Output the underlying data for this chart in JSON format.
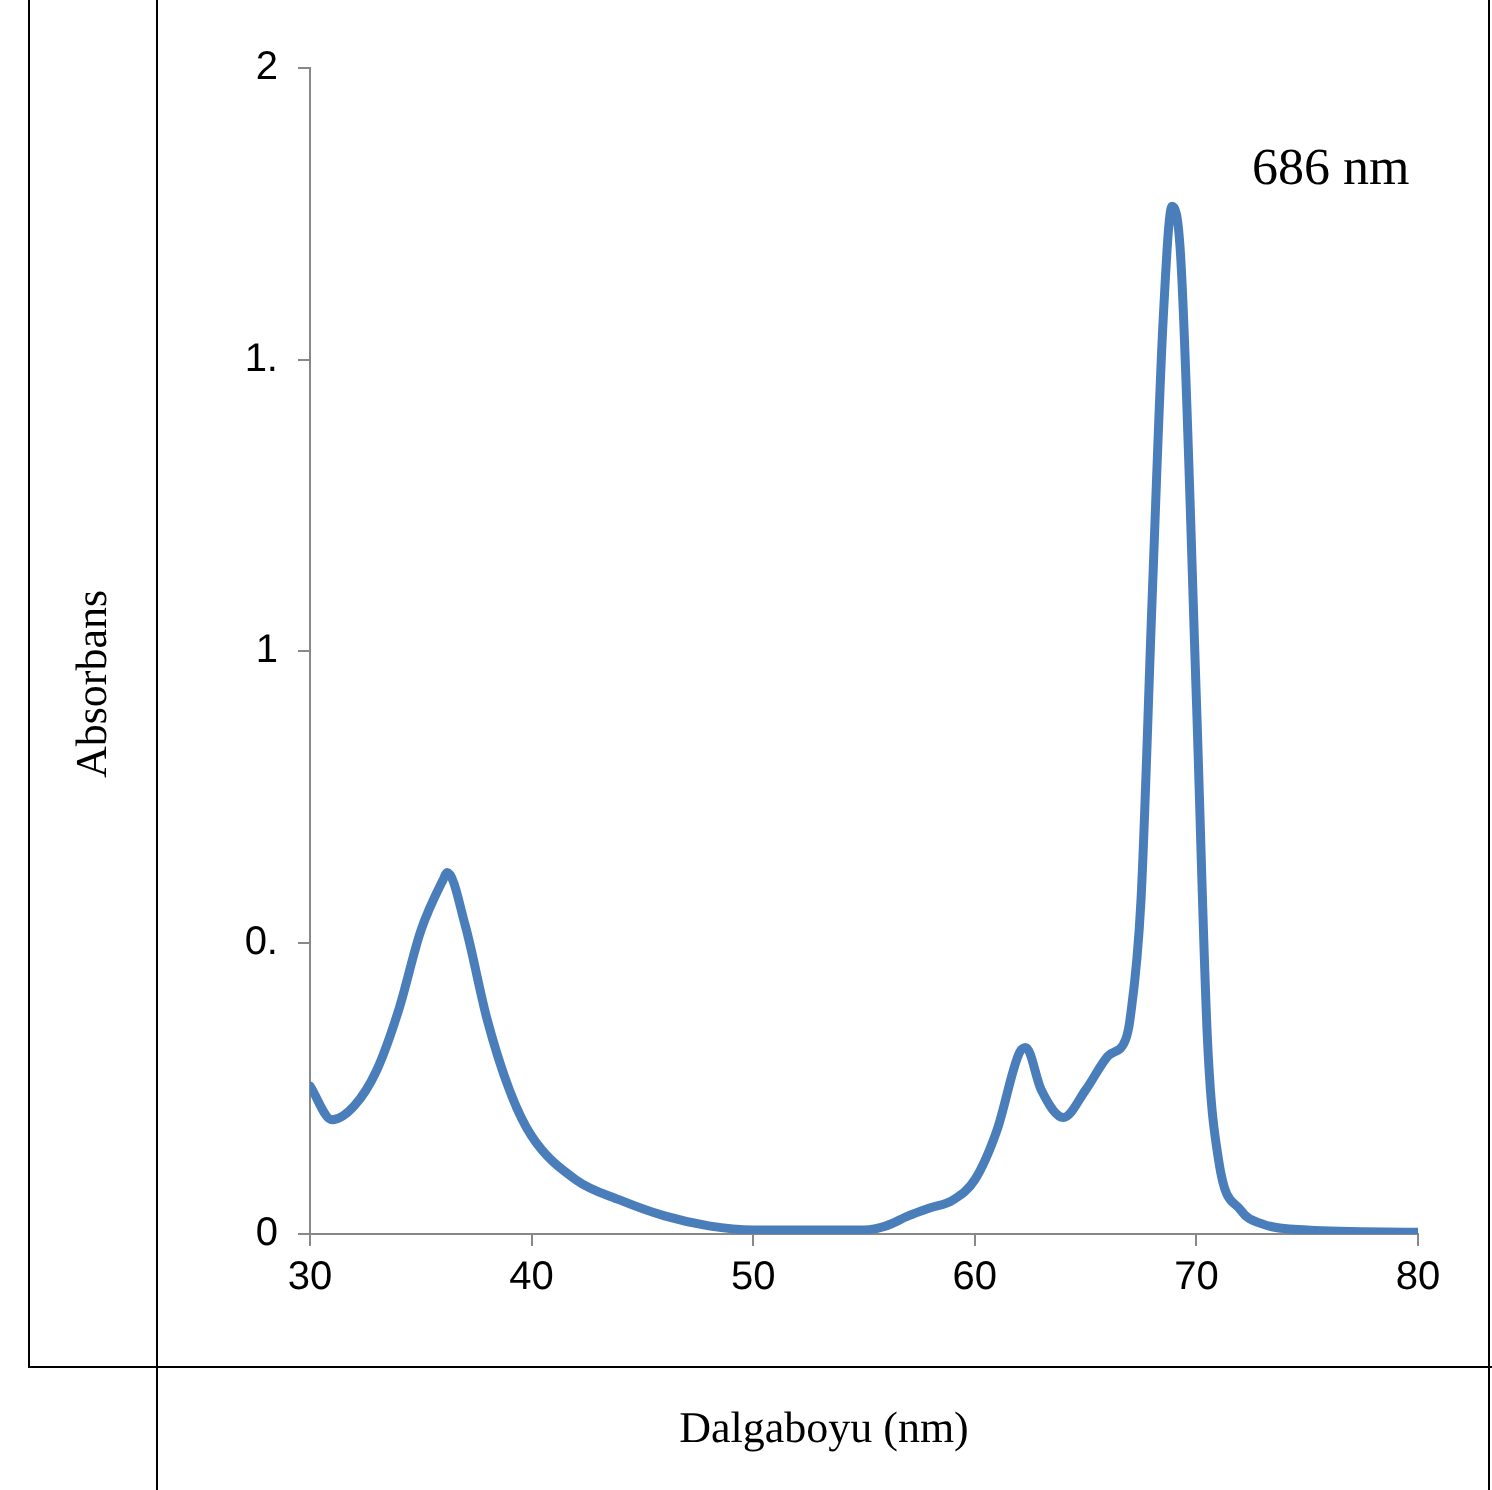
{
  "chart_data": {
    "type": "line",
    "xlabel": "Dalgaboyu (nm)",
    "ylabel": "Absorbans",
    "xlim": [
      30,
      80
    ],
    "xticks": [
      30,
      40,
      50,
      60,
      70,
      80
    ],
    "ylim": [
      0,
      2
    ],
    "yticks": [
      0,
      {
        "value": 0.5,
        "label": "0."
      },
      1,
      {
        "value": 1.5,
        "label": "1."
      },
      2
    ],
    "grid": false,
    "legend": false,
    "marker": "none",
    "line_style": "solid",
    "annotations": [
      {
        "text": "686 nm",
        "x": 68.9,
        "y": 1.76
      }
    ],
    "series": [
      {
        "color": "#4a7ebb",
        "x": [
          30,
          31,
          32,
          33,
          34,
          35,
          36,
          36.2,
          37,
          38,
          39,
          40,
          42,
          44,
          46,
          48,
          50,
          55,
          56,
          57,
          58,
          59,
          60,
          61,
          62,
          62.3,
          63,
          64,
          65,
          66,
          66.8,
          67,
          67.5,
          68,
          68.5,
          68.9,
          69.3,
          70,
          70.5,
          71,
          72,
          73,
          75,
          80
        ],
        "values": [
          0.254,
          0.196,
          0.22,
          0.28,
          0.384,
          0.52,
          0.607,
          0.62,
          0.53,
          0.367,
          0.247,
          0.168,
          0.093,
          0.058,
          0.031,
          0.014,
          0.007,
          0.007,
          0.014,
          0.031,
          0.045,
          0.058,
          0.093,
          0.178,
          0.31,
          0.32,
          0.247,
          0.2,
          0.247,
          0.305,
          0.333,
          0.367,
          0.573,
          1.087,
          1.568,
          1.763,
          1.67,
          0.916,
          0.333,
          0.127,
          0.041,
          0.017,
          0.007,
          0.003
        ]
      }
    ]
  }
}
